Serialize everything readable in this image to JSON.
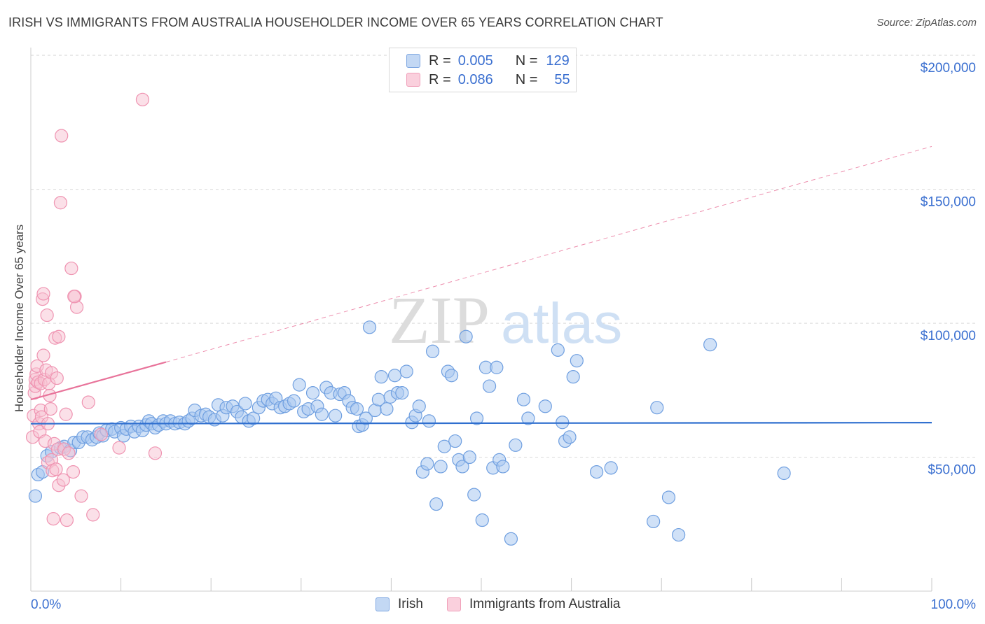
{
  "title": "IRISH VS IMMIGRANTS FROM AUSTRALIA HOUSEHOLDER INCOME OVER 65 YEARS CORRELATION CHART",
  "source": "Source: ZipAtlas.com",
  "watermark": {
    "zip": "ZIP",
    "atlas": "atlas"
  },
  "legend": {
    "r_label": "R =",
    "n_label": "N =",
    "rows": [
      {
        "r": "0.005",
        "n": "129"
      },
      {
        "r": "0.086",
        "n": "55"
      }
    ]
  },
  "bottom_legend": [
    "Irish",
    "Immigrants from Australia"
  ],
  "colors": {
    "irish_fill": "#a9c8f0",
    "irish_stroke": "#6f9fe0",
    "irish_line": "#2f6fcf",
    "aus_fill": "#f8c2d2",
    "aus_stroke": "#ef93b1",
    "aus_line": "#e8739a",
    "axis_text": "#3a6fd0",
    "grid": "#d9d9d9"
  },
  "chart_data": {
    "type": "scatter",
    "title": "IRISH VS IMMIGRANTS FROM AUSTRALIA HOUSEHOLDER INCOME OVER 65 YEARS CORRELATION CHART",
    "xlabel": "",
    "ylabel": "Householder Income Over 65 years",
    "xlim": [
      0,
      100
    ],
    "ylim": [
      0,
      205000
    ],
    "x_tick_labels": [
      "0.0%",
      "100.0%"
    ],
    "y_ticks": [
      50000,
      100000,
      150000,
      200000
    ],
    "y_tick_labels": [
      "$50,000",
      "$100,000",
      "$150,000",
      "$200,000"
    ],
    "grid": "horizontal dashed",
    "legend_position": "top-center",
    "series": [
      {
        "name": "Irish",
        "trend": {
          "x0": 0,
          "y0": 62500,
          "x1": 100,
          "y1": 62900
        },
        "points": [
          [
            0.5,
            35500
          ],
          [
            0.8,
            43500
          ],
          [
            1.3,
            44500
          ],
          [
            1.8,
            50500
          ],
          [
            2.3,
            52000
          ],
          [
            3.3,
            53500
          ],
          [
            3.7,
            54000
          ],
          [
            4.4,
            52500
          ],
          [
            4.8,
            55500
          ],
          [
            5.3,
            55500
          ],
          [
            5.8,
            57500
          ],
          [
            6.3,
            57500
          ],
          [
            6.8,
            56500
          ],
          [
            7.3,
            57500
          ],
          [
            7.6,
            59000
          ],
          [
            8.0,
            58000
          ],
          [
            8.4,
            60000
          ],
          [
            9.0,
            60500
          ],
          [
            9.3,
            59500
          ],
          [
            10.0,
            61000
          ],
          [
            10.3,
            58000
          ],
          [
            10.6,
            60500
          ],
          [
            11.1,
            61500
          ],
          [
            11.5,
            59500
          ],
          [
            12.0,
            61500
          ],
          [
            12.4,
            60000
          ],
          [
            12.8,
            62000
          ],
          [
            13.1,
            63500
          ],
          [
            13.4,
            62500
          ],
          [
            13.8,
            61000
          ],
          [
            14.2,
            62000
          ],
          [
            14.7,
            63500
          ],
          [
            15.0,
            62500
          ],
          [
            15.5,
            63500
          ],
          [
            16.0,
            62500
          ],
          [
            16.5,
            63000
          ],
          [
            17.1,
            62500
          ],
          [
            17.5,
            63500
          ],
          [
            17.9,
            64500
          ],
          [
            18.2,
            67500
          ],
          [
            18.9,
            65500
          ],
          [
            19.4,
            66000
          ],
          [
            19.8,
            65000
          ],
          [
            20.4,
            64000
          ],
          [
            20.8,
            69500
          ],
          [
            21.3,
            65500
          ],
          [
            21.7,
            68500
          ],
          [
            22.4,
            69000
          ],
          [
            22.9,
            67000
          ],
          [
            23.4,
            65000
          ],
          [
            23.8,
            70000
          ],
          [
            24.2,
            63500
          ],
          [
            24.7,
            64500
          ],
          [
            25.3,
            68500
          ],
          [
            25.8,
            71000
          ],
          [
            26.3,
            71500
          ],
          [
            26.8,
            70000
          ],
          [
            27.2,
            72000
          ],
          [
            27.7,
            68500
          ],
          [
            28.2,
            69000
          ],
          [
            28.7,
            70000
          ],
          [
            29.2,
            71000
          ],
          [
            29.8,
            77000
          ],
          [
            30.3,
            67000
          ],
          [
            30.8,
            68000
          ],
          [
            31.3,
            74000
          ],
          [
            31.8,
            69000
          ],
          [
            32.3,
            66000
          ],
          [
            32.8,
            76000
          ],
          [
            33.3,
            74000
          ],
          [
            33.8,
            65500
          ],
          [
            34.3,
            73500
          ],
          [
            34.8,
            74000
          ],
          [
            35.3,
            71000
          ],
          [
            35.7,
            68500
          ],
          [
            36.2,
            68000
          ],
          [
            36.4,
            61500
          ],
          [
            36.8,
            62000
          ],
          [
            37.2,
            64500
          ],
          [
            37.6,
            98500
          ],
          [
            38.2,
            67500
          ],
          [
            38.6,
            71500
          ],
          [
            38.9,
            80000
          ],
          [
            39.5,
            68000
          ],
          [
            39.9,
            72500
          ],
          [
            40.4,
            80500
          ],
          [
            40.7,
            74000
          ],
          [
            41.2,
            74000
          ],
          [
            41.7,
            82000
          ],
          [
            42.3,
            63000
          ],
          [
            42.7,
            65500
          ],
          [
            43.1,
            69000
          ],
          [
            43.5,
            44500
          ],
          [
            44.0,
            47500
          ],
          [
            44.2,
            63500
          ],
          [
            44.6,
            89500
          ],
          [
            45.0,
            32500
          ],
          [
            45.5,
            46500
          ],
          [
            45.9,
            54000
          ],
          [
            46.3,
            82000
          ],
          [
            46.7,
            80500
          ],
          [
            47.1,
            56000
          ],
          [
            47.5,
            49000
          ],
          [
            47.9,
            46500
          ],
          [
            48.3,
            95000
          ],
          [
            48.7,
            50000
          ],
          [
            49.2,
            36000
          ],
          [
            49.5,
            64500
          ],
          [
            50.1,
            26500
          ],
          [
            50.5,
            83500
          ],
          [
            50.9,
            76500
          ],
          [
            51.3,
            46000
          ],
          [
            51.7,
            83500
          ],
          [
            52.0,
            49000
          ],
          [
            52.4,
            46500
          ],
          [
            53.3,
            19500
          ],
          [
            53.8,
            54500
          ],
          [
            54.7,
            71500
          ],
          [
            55.2,
            64500
          ],
          [
            57.1,
            69000
          ],
          [
            58.5,
            90000
          ],
          [
            59.0,
            63000
          ],
          [
            59.3,
            56000
          ],
          [
            59.8,
            57500
          ],
          [
            60.2,
            80000
          ],
          [
            60.6,
            86000
          ],
          [
            62.8,
            44500
          ],
          [
            64.4,
            46000
          ],
          [
            69.1,
            26000
          ],
          [
            69.5,
            68500
          ],
          [
            70.8,
            35000
          ],
          [
            71.9,
            21000
          ],
          [
            75.4,
            92000
          ],
          [
            83.6,
            44000
          ]
        ]
      },
      {
        "name": "Immigrants from Australia",
        "trend": {
          "x0": 0,
          "y0": 71500,
          "x1": 15,
          "y1": 85500,
          "dash_x1": 100,
          "dash_y1": 166000
        },
        "points": [
          [
            0.2,
            57500
          ],
          [
            0.3,
            65500
          ],
          [
            0.4,
            74000
          ],
          [
            0.5,
            76500
          ],
          [
            0.5,
            79000
          ],
          [
            0.6,
            81000
          ],
          [
            0.7,
            84000
          ],
          [
            0.8,
            78000
          ],
          [
            0.9,
            62500
          ],
          [
            1.0,
            59500
          ],
          [
            1.1,
            67500
          ],
          [
            1.1,
            77500
          ],
          [
            1.2,
            65000
          ],
          [
            1.3,
            109000
          ],
          [
            1.4,
            111000
          ],
          [
            1.4,
            88000
          ],
          [
            1.5,
            79000
          ],
          [
            1.6,
            56000
          ],
          [
            1.7,
            82500
          ],
          [
            1.8,
            103000
          ],
          [
            1.9,
            48000
          ],
          [
            1.9,
            62500
          ],
          [
            2.0,
            77500
          ],
          [
            2.1,
            73000
          ],
          [
            2.2,
            68000
          ],
          [
            2.3,
            49000
          ],
          [
            2.3,
            81500
          ],
          [
            2.4,
            45000
          ],
          [
            2.5,
            27000
          ],
          [
            2.6,
            55000
          ],
          [
            2.7,
            94500
          ],
          [
            2.8,
            45500
          ],
          [
            2.9,
            79500
          ],
          [
            3.0,
            53000
          ],
          [
            3.1,
            39500
          ],
          [
            3.1,
            95000
          ],
          [
            3.3,
            145000
          ],
          [
            3.4,
            170000
          ],
          [
            3.6,
            41500
          ],
          [
            3.7,
            53000
          ],
          [
            3.9,
            66000
          ],
          [
            4.0,
            26500
          ],
          [
            4.2,
            51500
          ],
          [
            4.5,
            120500
          ],
          [
            4.7,
            44500
          ],
          [
            4.9,
            110000
          ],
          [
            5.1,
            106000
          ],
          [
            5.6,
            35500
          ],
          [
            6.4,
            70500
          ],
          [
            6.9,
            28500
          ],
          [
            7.8,
            58500
          ],
          [
            9.8,
            53500
          ],
          [
            12.4,
            183500
          ],
          [
            13.8,
            51500
          ],
          [
            4.8,
            110000
          ]
        ]
      }
    ]
  }
}
